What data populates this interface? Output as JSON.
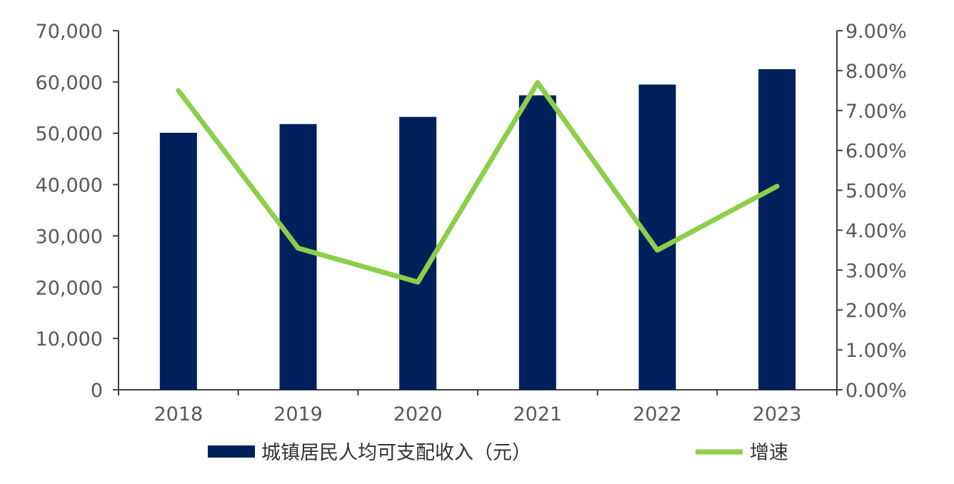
{
  "chart_data": {
    "type": "bar+line",
    "categories": [
      "2018",
      "2019",
      "2020",
      "2021",
      "2022",
      "2023"
    ],
    "series": [
      {
        "name": "城镇居民人均可支配收入（元）",
        "type": "bar",
        "axis": "left",
        "values": [
          50100,
          51800,
          53200,
          57400,
          59500,
          62500
        ]
      },
      {
        "name": "增速",
        "type": "line",
        "axis": "right",
        "values": [
          7.5,
          3.55,
          2.7,
          7.7,
          3.5,
          5.1
        ]
      }
    ],
    "left_axis": {
      "ylim": [
        0,
        70000
      ],
      "ticks": [
        "0",
        "10,000",
        "20,000",
        "30,000",
        "40,000",
        "50,000",
        "60,000",
        "70,000"
      ]
    },
    "right_axis": {
      "ylim": [
        0,
        9
      ],
      "ticks": [
        "0.00%",
        "1.00%",
        "2.00%",
        "3.00%",
        "4.00%",
        "5.00%",
        "6.00%",
        "7.00%",
        "8.00%",
        "9.00%"
      ]
    },
    "grid": false,
    "legend_position": "bottom",
    "colors": {
      "bar": "#00205C",
      "line": "#8BCF4A",
      "axis": "#404040",
      "text": "#595959"
    }
  }
}
